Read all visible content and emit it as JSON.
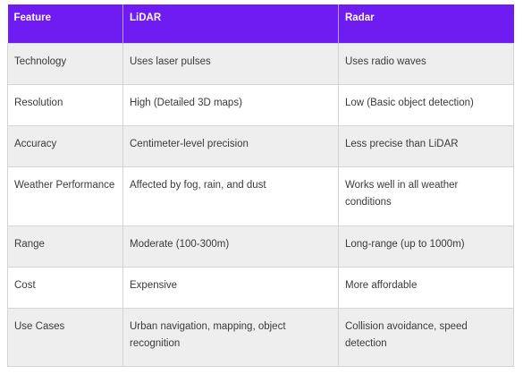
{
  "table": {
    "headers": [
      "Feature",
      "LiDAR",
      "Radar"
    ],
    "rows": [
      [
        "Technology",
        "Uses laser pulses",
        "Uses radio waves"
      ],
      [
        "Resolution",
        "High (Detailed 3D maps)",
        "Low (Basic object detection)"
      ],
      [
        "Accuracy",
        "Centimeter-level precision",
        "Less precise than LiDAR"
      ],
      [
        "Weather Performance",
        "Affected by fog, rain, and dust",
        "Works well in all weather conditions"
      ],
      [
        "Range",
        "Moderate (100-300m)",
        "Long-range (up to 1000m)"
      ],
      [
        "Cost",
        "Expensive",
        "More affordable"
      ],
      [
        "Use Cases",
        "Urban navigation, mapping, object recognition",
        "Collision avoidance, speed detection"
      ]
    ]
  },
  "colors": {
    "header_background": "#6f1cf2",
    "header_text": "#ffffff",
    "stripe_background": "#eeeeee",
    "body_text": "#3a3a3a"
  }
}
